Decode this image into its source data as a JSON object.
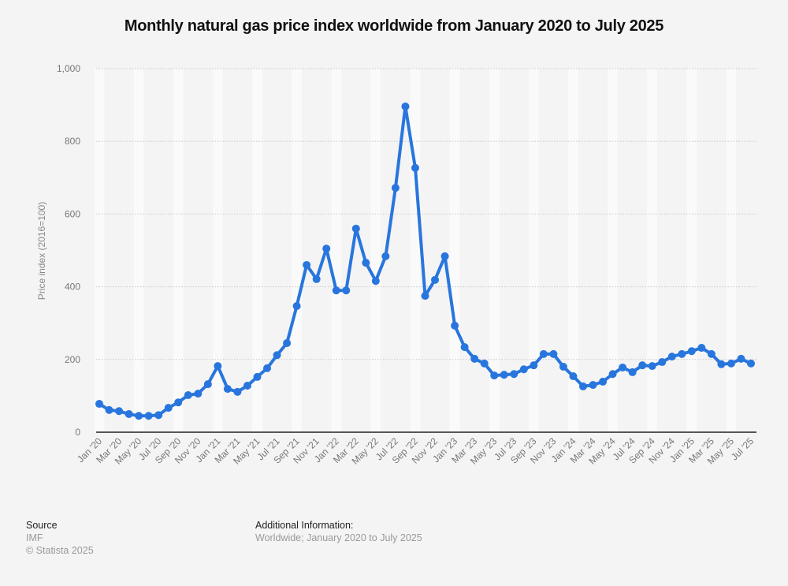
{
  "chart_data": {
    "type": "line",
    "title": "Monthly natural gas price index worldwide from January 2020 to July 2025",
    "xlabel": "",
    "ylabel": "Price index (2016=100)",
    "ylim": [
      0,
      1000
    ],
    "yticks": [
      0,
      200,
      400,
      600,
      800,
      1000
    ],
    "ytick_labels": [
      "0",
      "200",
      "400",
      "600",
      "800",
      "1,000"
    ],
    "grid": true,
    "legend": "none",
    "line_color": "#2876dd",
    "x": [
      "Jan '20",
      "Feb '20",
      "Mar '20",
      "Apr '20",
      "May '20",
      "Jun '20",
      "Jul '20",
      "Aug '20",
      "Sep '20",
      "Oct '20",
      "Nov '20",
      "Dec '20",
      "Jan '21",
      "Feb '21",
      "Mar '21",
      "Apr '21",
      "May '21",
      "Jun '21",
      "Jul '21",
      "Aug '21",
      "Sep '21",
      "Oct '21",
      "Nov '21",
      "Dec '21",
      "Jan '22",
      "Feb '22",
      "Mar '22",
      "Apr '22",
      "May '22",
      "Jun '22",
      "Jul '22",
      "Aug '22",
      "Sep '22",
      "Oct '22",
      "Nov '22",
      "Dec '22",
      "Jan '23",
      "Feb '23",
      "Mar '23",
      "Apr '23",
      "May '23",
      "Jun '23",
      "Jul '23",
      "Aug '23",
      "Sep '23",
      "Oct '23",
      "Nov '23",
      "Dec '23",
      "Jan '24",
      "Feb '24",
      "Mar '24",
      "Apr '24",
      "May '24",
      "Jun '24",
      "Jul '24",
      "Aug '24",
      "Sep '24",
      "Oct '24",
      "Nov '24",
      "Dec '24",
      "Jan '25",
      "Feb '25",
      "Mar '25",
      "Apr '25",
      "May '25",
      "Jun '25",
      "Jul '25"
    ],
    "xtick_labels": [
      "Jan '20",
      "Mar '20",
      "May '20",
      "Jul '20",
      "Sep '20",
      "Nov '20",
      "Jan '21",
      "Mar '21",
      "May '21",
      "Jul '21",
      "Sep '21",
      "Nov '21",
      "Jan '22",
      "Mar '22",
      "May '22",
      "Jul '22",
      "Sep '22",
      "Nov '22",
      "Jan '23",
      "Mar '23",
      "May '23",
      "Jul '23",
      "Sep '23",
      "Nov '23",
      "Jan '24",
      "Mar '24",
      "May '24",
      "Jul '24",
      "Sep '24",
      "Nov '24",
      "Jan '25",
      "Mar '25",
      "May '25",
      "Jul '25"
    ],
    "series": [
      {
        "name": "Natural gas price index",
        "values": [
          78,
          61,
          58,
          50,
          45,
          45,
          47,
          67,
          82,
          102,
          106,
          132,
          182,
          119,
          111,
          128,
          152,
          176,
          212,
          245,
          347,
          460,
          421,
          505,
          390,
          390,
          560,
          466,
          416,
          484,
          672,
          896,
          727,
          375,
          419,
          484,
          293,
          234,
          202,
          189,
          156,
          158,
          160,
          173,
          184,
          215,
          215,
          180,
          154,
          126,
          130,
          139,
          160,
          178,
          165,
          184,
          182,
          193,
          208,
          215,
          223,
          232,
          215,
          187,
          189,
          202,
          189
        ]
      }
    ]
  },
  "footer": {
    "source_heading": "Source",
    "source_name": "IMF",
    "copyright": "© Statista 2025",
    "additional_heading": "Additional Information:",
    "additional_text": "Worldwide; January 2020 to July 2025"
  }
}
